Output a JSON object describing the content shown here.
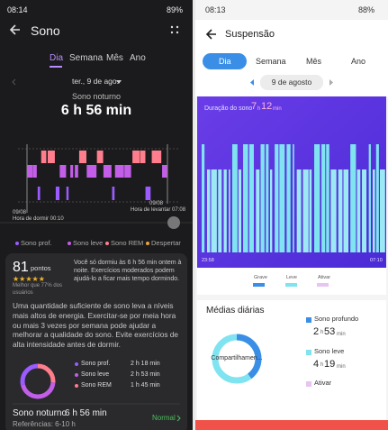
{
  "left": {
    "status": {
      "time": "08:14",
      "battery": "89%"
    },
    "title": "Sono",
    "tabs": [
      "Dia",
      "Semana",
      "Mês",
      "Ano"
    ],
    "date": "ter., 9 de ago.",
    "summary_label": "Sono noturno",
    "summary_value": "6 h 56 min",
    "bedtime": {
      "date": "09/08",
      "label": "Hora de dormir 00:10"
    },
    "wake": {
      "date": "09/08",
      "label": "Hora de levantar 07:08"
    },
    "legend": [
      "Sono prof.",
      "Sono leve",
      "Sono REM",
      "Despertar"
    ],
    "score": {
      "value": "81",
      "unit": "pontos",
      "comparison": "Melhor que 77% dos usuários",
      "comment": "Você só dormiu às 6 h 56 min ontem à noite. Exercícios moderados podem ajudá-lo a ficar mais tempo dormindo."
    },
    "advice": "Uma quantidade suficiente de sono leva a níveis mais altos de energia. Exercitar-se por meia hora ou mais 3 vezes por semana pode ajudar a melhorar a qualidade do sono. Evite exercícios de alta intensidade antes de dormir.",
    "breakdown": [
      {
        "label": "Sono prof.",
        "value": "2 h 18 min"
      },
      {
        "label": "Sono leve",
        "value": "2 h 53 min"
      },
      {
        "label": "Sono REM",
        "value": "1 h 45 min"
      }
    ],
    "total": {
      "label": "Sono noturno",
      "value": "6 h 56 min",
      "status": "Normal",
      "reference": "Referências: 6-10 h"
    }
  },
  "right": {
    "status": {
      "time": "08:13",
      "battery": "88%"
    },
    "title": "Suspensão",
    "tabs": [
      "Dia",
      "Semana",
      "Mês",
      "Ano"
    ],
    "date": "9 de agosto",
    "chart": {
      "label": "Duração do sono",
      "hours": "7",
      "minutes": "12",
      "hour_unit": "h",
      "minute_unit": "min",
      "start": "23:58",
      "end": "07:10",
      "legend": [
        "Grave",
        "Leve",
        "Ativar"
      ]
    },
    "averages": {
      "title": "Médias diárias",
      "center": "Compartilhamen...",
      "items": [
        {
          "label": "Sono profundo",
          "hours": "2",
          "minutes": "53"
        },
        {
          "label": "Sono leve",
          "hours": "4",
          "minutes": "19"
        },
        {
          "label": "Ativar"
        }
      ]
    }
  }
}
